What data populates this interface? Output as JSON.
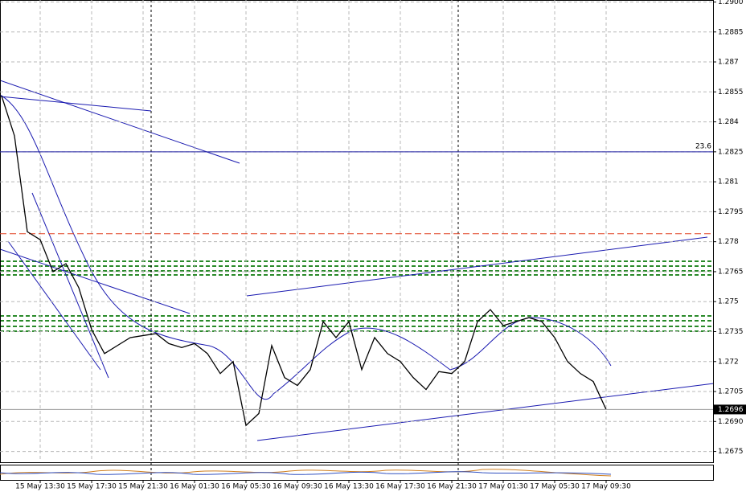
{
  "chart_data": {
    "type": "line",
    "categories": [
      null,
      null,
      null,
      "15 May 13:30",
      null,
      null,
      null,
      "15 May 17:30",
      null,
      null,
      null,
      "15 May 21:30",
      null,
      null,
      null,
      "16 May 01:30",
      null,
      null,
      null,
      "16 May 05:30",
      null,
      null,
      null,
      "16 May 09:30",
      null,
      null,
      null,
      "16 May 13:30",
      null,
      null,
      null,
      "16 May 17:30",
      null,
      null,
      null,
      "16 May 21:30",
      null,
      null,
      null,
      "17 May 01:30",
      null,
      null,
      null,
      "17 May 05:30",
      null,
      null,
      null,
      "17 May 09:30"
    ],
    "series": [
      {
        "color": "#000000",
        "values": [
          1.2853,
          1.2833,
          1.2785,
          1.2781,
          1.2765,
          1.2769,
          1.2757,
          1.2736,
          1.2724,
          1.2728,
          1.2732,
          1.2733,
          1.2734,
          1.2729,
          1.2727,
          1.2729,
          1.2724,
          1.2714,
          1.272,
          1.2688,
          1.2694,
          1.2728,
          1.2712,
          1.2708,
          1.2716,
          1.274,
          1.2732,
          1.274,
          1.2716,
          1.2732,
          1.2724,
          1.272,
          1.2712,
          1.2706,
          1.2715,
          1.2714,
          1.272,
          1.274,
          1.2746,
          1.2738,
          1.274,
          1.2742,
          1.274,
          1.2732,
          1.272,
          1.2714,
          1.271,
          1.2696
        ]
      }
    ],
    "ylim": [
      1.267,
      1.2901
    ],
    "yticks": [
      {
        "value": 1.29,
        "label": "1.2900"
      },
      1.2885,
      1.287,
      1.2855,
      1.284,
      1.2825,
      1.281,
      1.2795,
      1.278,
      1.2765,
      1.275,
      1.2735,
      1.272,
      1.2705,
      {
        "value": 1.269,
        "label": "1.2690"
      },
      1.2675
    ],
    "grid": true,
    "levels": [
      {
        "label": "23.6",
        "value": 1.2825,
        "color": "#1a1aa0"
      }
    ],
    "hlines": [
      {
        "value": 1.2784,
        "color": "#e04020"
      }
    ],
    "last_price": 1.2696
  }
}
